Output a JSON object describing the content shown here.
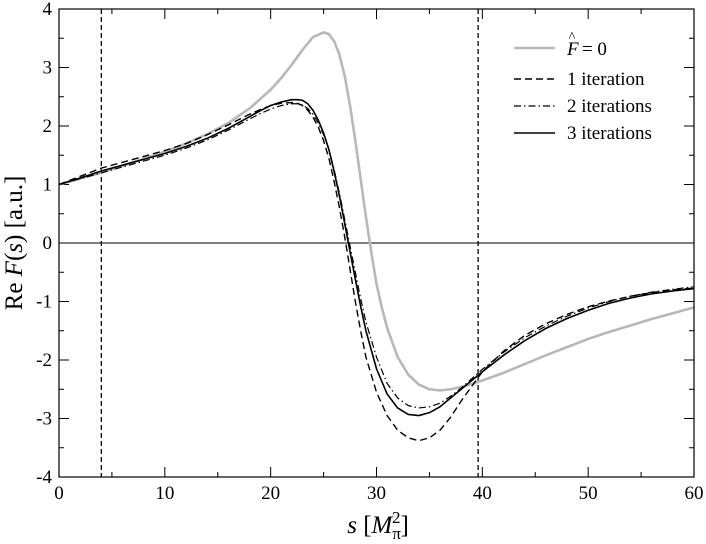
{
  "chart_data": {
    "type": "line",
    "title": "",
    "xlabel": "s [M_π^2]",
    "xlabel_parts": {
      "var": "s",
      "open": " [",
      "sym": "M",
      "sub": "π",
      "sup": "2",
      "close": "]"
    },
    "ylabel": "Re F(s) [a.u.]",
    "ylabel_parts": {
      "re": "Re ",
      "fn": "F",
      "lp": "(",
      "arg": "s",
      "rp": ")",
      "unit": " [a.u.]"
    },
    "xlim": [
      0,
      60
    ],
    "ylim": [
      -4,
      4
    ],
    "x_ticks": [
      0,
      10,
      20,
      30,
      40,
      50,
      60
    ],
    "x_tick_labels": [
      "0",
      "10",
      "20",
      "30",
      "40",
      "50",
      "60"
    ],
    "y_ticks": [
      -4,
      -3,
      -2,
      -1,
      0,
      1,
      2,
      3,
      4
    ],
    "y_tick_labels": [
      "-4",
      "-3",
      "-2",
      "-1",
      "0",
      "1",
      "2",
      "3",
      "4"
    ],
    "reference_lines": {
      "horizontal_y": 0,
      "vertical_x": [
        4,
        39.6
      ]
    },
    "legend_position": "top-right",
    "series": [
      {
        "name": "F̂ = 0",
        "legend": {
          "sym": "F",
          "hat": "^",
          "rest": " = 0"
        },
        "style": "solid",
        "color": "#b8b8b8",
        "x": [
          0,
          2,
          4,
          6,
          8,
          10,
          12,
          14,
          16,
          18,
          20,
          21,
          22,
          23,
          24,
          25,
          25.5,
          26,
          26.5,
          27,
          27.5,
          28,
          28.5,
          29,
          29.5,
          30,
          30.5,
          31,
          32,
          33,
          34,
          35,
          36,
          37,
          38,
          39,
          40,
          42,
          44,
          46,
          48,
          50,
          52,
          54,
          56,
          58,
          60
        ],
        "y": [
          1.0,
          1.1,
          1.2,
          1.32,
          1.44,
          1.56,
          1.7,
          1.86,
          2.05,
          2.3,
          2.62,
          2.82,
          3.05,
          3.3,
          3.52,
          3.6,
          3.57,
          3.45,
          3.22,
          2.85,
          2.35,
          1.75,
          1.1,
          0.45,
          -0.15,
          -0.7,
          -1.1,
          -1.45,
          -1.95,
          -2.25,
          -2.42,
          -2.5,
          -2.52,
          -2.5,
          -2.46,
          -2.41,
          -2.35,
          -2.22,
          -2.07,
          -1.92,
          -1.78,
          -1.64,
          -1.52,
          -1.41,
          -1.3,
          -1.2,
          -1.1
        ]
      },
      {
        "name": "1 iteration",
        "style": "dashed",
        "color": "#000000",
        "x": [
          0,
          2,
          4,
          6,
          8,
          10,
          12,
          14,
          16,
          18,
          19,
          20,
          21,
          22,
          22.5,
          23,
          23.5,
          24,
          24.5,
          25,
          25.5,
          26,
          26.5,
          27,
          27.5,
          28,
          28.5,
          29,
          30,
          31,
          32,
          33,
          34,
          35,
          36,
          37,
          38,
          39,
          40,
          42,
          44,
          46,
          48,
          50,
          52,
          54,
          56,
          58,
          60
        ],
        "y": [
          1.0,
          1.14,
          1.28,
          1.38,
          1.48,
          1.58,
          1.7,
          1.85,
          2.02,
          2.2,
          2.28,
          2.35,
          2.39,
          2.4,
          2.39,
          2.35,
          2.27,
          2.15,
          1.98,
          1.75,
          1.45,
          1.05,
          0.6,
          0.1,
          -0.45,
          -1.0,
          -1.5,
          -1.95,
          -2.55,
          -2.95,
          -3.2,
          -3.33,
          -3.38,
          -3.33,
          -3.2,
          -2.98,
          -2.7,
          -2.45,
          -2.2,
          -1.85,
          -1.58,
          -1.38,
          -1.22,
          -1.09,
          -0.99,
          -0.91,
          -0.85,
          -0.8,
          -0.77
        ]
      },
      {
        "name": "2 iterations",
        "style": "dashdot",
        "color": "#000000",
        "x": [
          0,
          2,
          4,
          6,
          8,
          10,
          12,
          14,
          16,
          18,
          19,
          20,
          21,
          22,
          22.5,
          23,
          23.5,
          24,
          24.5,
          25,
          25.5,
          26,
          26.5,
          27,
          27.5,
          28,
          28.5,
          29,
          30,
          31,
          32,
          33,
          34,
          35,
          36,
          37,
          38,
          39,
          40,
          42,
          44,
          46,
          48,
          50,
          52,
          54,
          56,
          58,
          60
        ],
        "y": [
          1.0,
          1.1,
          1.2,
          1.3,
          1.4,
          1.5,
          1.62,
          1.76,
          1.93,
          2.12,
          2.21,
          2.29,
          2.35,
          2.38,
          2.38,
          2.36,
          2.3,
          2.2,
          2.05,
          1.85,
          1.6,
          1.25,
          0.85,
          0.4,
          -0.05,
          -0.5,
          -0.95,
          -1.35,
          -1.95,
          -2.4,
          -2.65,
          -2.78,
          -2.82,
          -2.8,
          -2.74,
          -2.62,
          -2.48,
          -2.32,
          -2.16,
          -1.87,
          -1.62,
          -1.42,
          -1.25,
          -1.11,
          -1.0,
          -0.91,
          -0.84,
          -0.79,
          -0.75
        ]
      },
      {
        "name": "3 iterations",
        "style": "solid",
        "color": "#000000",
        "x": [
          0,
          2,
          4,
          6,
          8,
          10,
          12,
          14,
          16,
          18,
          19,
          20,
          21,
          22,
          22.5,
          23,
          23.5,
          24,
          24.5,
          25,
          25.5,
          26,
          26.5,
          27,
          27.5,
          28,
          28.5,
          29,
          30,
          31,
          32,
          33,
          34,
          35,
          36,
          37,
          38,
          39,
          40,
          42,
          44,
          46,
          48,
          50,
          52,
          54,
          56,
          58,
          60
        ],
        "y": [
          1.0,
          1.11,
          1.23,
          1.33,
          1.43,
          1.53,
          1.65,
          1.79,
          1.96,
          2.16,
          2.26,
          2.35,
          2.41,
          2.45,
          2.45,
          2.44,
          2.38,
          2.27,
          2.1,
          1.88,
          1.6,
          1.22,
          0.8,
          0.33,
          -0.15,
          -0.62,
          -1.08,
          -1.5,
          -2.15,
          -2.58,
          -2.82,
          -2.93,
          -2.95,
          -2.9,
          -2.8,
          -2.65,
          -2.5,
          -2.35,
          -2.2,
          -1.92,
          -1.67,
          -1.46,
          -1.29,
          -1.15,
          -1.03,
          -0.94,
          -0.87,
          -0.82,
          -0.78
        ]
      }
    ]
  }
}
